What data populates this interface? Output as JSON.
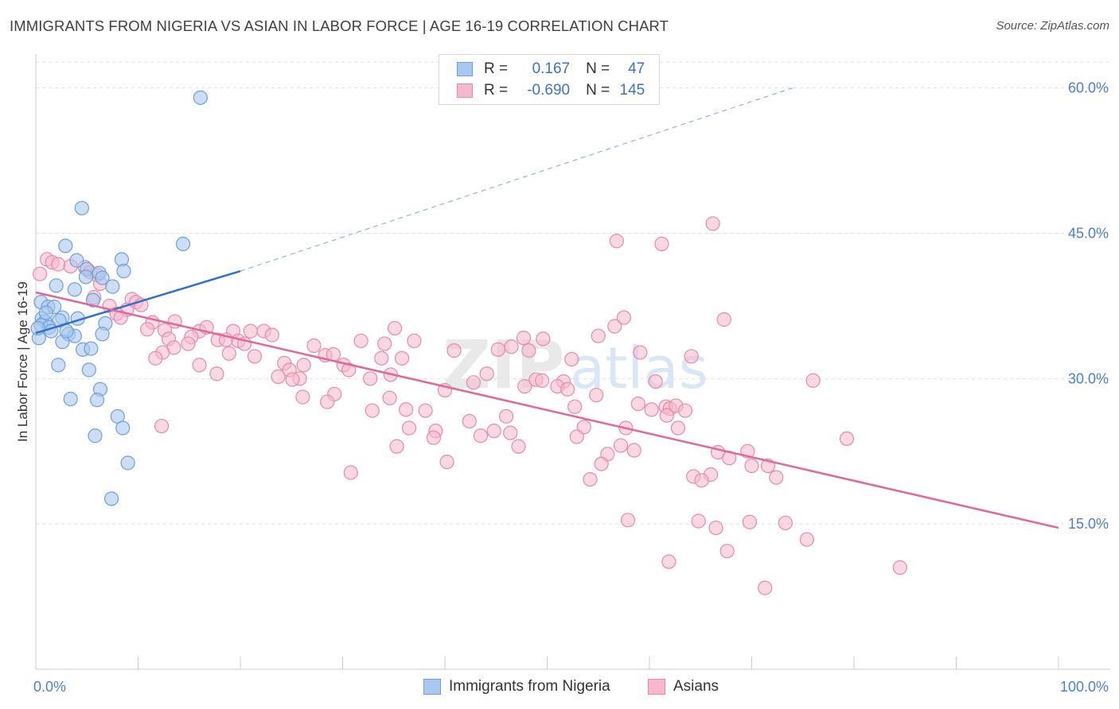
{
  "title": "IMMIGRANTS FROM NIGERIA VS ASIAN IN LABOR FORCE | AGE 16-19 CORRELATION CHART",
  "source": "Source: ZipAtlas.com",
  "watermark": "ZIPatlas",
  "colors": {
    "blue_fill": "#a9c8ef",
    "blue_stroke": "#6f9fdc",
    "blue_line": "#2f6fce",
    "pink_fill": "#f5b8cc",
    "pink_stroke": "#e68aa8",
    "pink_line": "#e06796",
    "grid": "#dddddd",
    "tick_text": "#4a7fd0"
  },
  "legend": {
    "rows": [
      {
        "r_label": "R =",
        "r_value": "0.167",
        "n_label": "N =",
        "n_value": "47"
      },
      {
        "r_label": "R =",
        "r_value": "-0.690",
        "n_label": "N =",
        "n_value": "145"
      }
    ]
  },
  "bottom_legend": {
    "items": [
      "Immigrants from Nigeria",
      "Asians"
    ]
  },
  "chart_data": {
    "type": "scatter",
    "title": "IMMIGRANTS FROM NIGERIA VS ASIAN IN LABOR FORCE | AGE 16-19 CORRELATION CHART",
    "xlabel": "",
    "ylabel": "In Labor Force | Age 16-19",
    "xlim": [
      0,
      100
    ],
    "ylim": [
      0,
      63.5
    ],
    "x_tick_labels": [
      {
        "value": 0,
        "label": "0.0%"
      },
      {
        "value": 100,
        "label": "100.0%"
      }
    ],
    "y_ticks": [
      {
        "value": 15,
        "label": "15.0%"
      },
      {
        "value": 30,
        "label": "30.0%"
      },
      {
        "value": 45,
        "label": "45.0%"
      },
      {
        "value": 60,
        "label": "60.0%"
      }
    ],
    "x_minor_ticks": [
      0,
      10,
      20,
      30,
      40,
      50,
      60,
      70,
      80,
      90,
      100
    ],
    "series": [
      {
        "name": "Immigrants from Nigeria",
        "R": 0.167,
        "N": 47,
        "trend": {
          "x0": 0,
          "y0": 34.7,
          "x1": 20,
          "y1": 41.1,
          "dash_to_x": 74,
          "dash_to_y": 60.0
        },
        "points": [
          [
            16.1,
            59.0
          ],
          [
            4.5,
            47.6
          ],
          [
            14.4,
            43.9
          ],
          [
            2.9,
            43.7
          ],
          [
            4.0,
            42.2
          ],
          [
            8.4,
            42.3
          ],
          [
            5.0,
            41.3
          ],
          [
            6.2,
            40.9
          ],
          [
            8.6,
            41.1
          ],
          [
            4.9,
            40.5
          ],
          [
            6.5,
            40.4
          ],
          [
            2.0,
            39.6
          ],
          [
            3.8,
            39.2
          ],
          [
            7.5,
            39.5
          ],
          [
            5.6,
            38.1
          ],
          [
            0.5,
            37.9
          ],
          [
            1.2,
            37.4
          ],
          [
            1.8,
            37.4
          ],
          [
            0.6,
            36.2
          ],
          [
            2.6,
            36.3
          ],
          [
            4.1,
            36.2
          ],
          [
            2.3,
            36.0
          ],
          [
            0.9,
            35.9
          ],
          [
            0.5,
            35.5
          ],
          [
            1.3,
            35.3
          ],
          [
            6.8,
            35.7
          ],
          [
            1.5,
            34.9
          ],
          [
            3.2,
            34.6
          ],
          [
            3.8,
            34.4
          ],
          [
            6.5,
            34.6
          ],
          [
            2.6,
            33.8
          ],
          [
            0.3,
            34.2
          ],
          [
            4.6,
            33.0
          ],
          [
            5.4,
            33.1
          ],
          [
            2.2,
            31.4
          ],
          [
            5.2,
            30.9
          ],
          [
            6.3,
            28.9
          ],
          [
            3.4,
            27.9
          ],
          [
            6.0,
            27.8
          ],
          [
            8.0,
            26.1
          ],
          [
            8.5,
            24.9
          ],
          [
            5.8,
            24.1
          ],
          [
            9.0,
            21.3
          ],
          [
            7.4,
            17.6
          ],
          [
            0.2,
            35.2
          ],
          [
            1.0,
            36.8
          ],
          [
            3.0,
            34.9
          ]
        ]
      },
      {
        "name": "Asians",
        "R": -0.69,
        "N": 145,
        "trend": {
          "x0": 0,
          "y0": 38.9,
          "x1": 100,
          "y1": 14.6
        },
        "points": [
          [
            0.4,
            40.8
          ],
          [
            1.1,
            42.3
          ],
          [
            1.6,
            42.0
          ],
          [
            2.2,
            41.8
          ],
          [
            3.4,
            41.6
          ],
          [
            4.8,
            41.5
          ],
          [
            5.3,
            41.0
          ],
          [
            6.0,
            40.7
          ],
          [
            6.3,
            39.8
          ],
          [
            5.7,
            38.4
          ],
          [
            9.4,
            38.2
          ],
          [
            9.8,
            37.9
          ],
          [
            7.2,
            37.5
          ],
          [
            8.9,
            37.1
          ],
          [
            10.3,
            37.6
          ],
          [
            7.9,
            36.7
          ],
          [
            8.3,
            36.3
          ],
          [
            13.6,
            35.9
          ],
          [
            11.4,
            35.8
          ],
          [
            10.9,
            35.1
          ],
          [
            12.6,
            35.0
          ],
          [
            16.0,
            34.9
          ],
          [
            16.7,
            35.3
          ],
          [
            19.3,
            34.9
          ],
          [
            21.0,
            34.9
          ],
          [
            22.3,
            34.9
          ],
          [
            23.1,
            34.5
          ],
          [
            15.2,
            34.3
          ],
          [
            13.0,
            34.1
          ],
          [
            17.8,
            34.0
          ],
          [
            18.6,
            34.0
          ],
          [
            19.8,
            33.9
          ],
          [
            20.4,
            33.6
          ],
          [
            14.9,
            33.6
          ],
          [
            13.5,
            33.2
          ],
          [
            12.4,
            32.7
          ],
          [
            21.4,
            32.3
          ],
          [
            11.7,
            32.1
          ],
          [
            24.3,
            31.6
          ],
          [
            26.2,
            31.4
          ],
          [
            24.8,
            30.9
          ],
          [
            16.0,
            31.4
          ],
          [
            17.7,
            30.5
          ],
          [
            23.7,
            30.2
          ],
          [
            25.8,
            30.0
          ],
          [
            25.1,
            29.9
          ],
          [
            28.3,
            32.4
          ],
          [
            29.1,
            32.5
          ],
          [
            27.2,
            33.4
          ],
          [
            30.1,
            31.4
          ],
          [
            31.8,
            33.9
          ],
          [
            35.1,
            35.2
          ],
          [
            33.8,
            32.1
          ],
          [
            37.0,
            33.9
          ],
          [
            35.8,
            32.1
          ],
          [
            34.7,
            30.4
          ],
          [
            32.7,
            30.0
          ],
          [
            30.6,
            30.9
          ],
          [
            29.2,
            28.4
          ],
          [
            28.5,
            27.6
          ],
          [
            26.1,
            28.1
          ],
          [
            32.9,
            26.7
          ],
          [
            34.6,
            28.0
          ],
          [
            36.2,
            26.8
          ],
          [
            36.5,
            24.9
          ],
          [
            39.1,
            24.6
          ],
          [
            38.1,
            26.7
          ],
          [
            35.3,
            23.0
          ],
          [
            38.9,
            23.9
          ],
          [
            40.0,
            28.8
          ],
          [
            40.9,
            32.9
          ],
          [
            42.4,
            25.6
          ],
          [
            42.8,
            29.6
          ],
          [
            44.1,
            30.5
          ],
          [
            45.2,
            33.0
          ],
          [
            43.5,
            24.1
          ],
          [
            44.8,
            24.6
          ],
          [
            46.4,
            24.4
          ],
          [
            47.2,
            23.0
          ],
          [
            46.0,
            26.1
          ],
          [
            47.8,
            29.2
          ],
          [
            48.9,
            29.9
          ],
          [
            49.5,
            29.8
          ],
          [
            51.6,
            29.7
          ],
          [
            47.7,
            34.2
          ],
          [
            46.5,
            33.3
          ],
          [
            48.2,
            32.9
          ],
          [
            49.6,
            34.1
          ],
          [
            51.0,
            29.2
          ],
          [
            52.7,
            27.1
          ],
          [
            53.6,
            25.0
          ],
          [
            54.8,
            28.3
          ],
          [
            52.9,
            24.0
          ],
          [
            52.4,
            32.0
          ],
          [
            52.0,
            28.9
          ],
          [
            55.9,
            22.2
          ],
          [
            57.7,
            24.9
          ],
          [
            58.5,
            22.6
          ],
          [
            57.2,
            23.1
          ],
          [
            58.9,
            27.4
          ],
          [
            60.6,
            29.7
          ],
          [
            61.6,
            27.1
          ],
          [
            62.0,
            26.9
          ],
          [
            62.6,
            27.2
          ],
          [
            60.2,
            26.8
          ],
          [
            61.7,
            26.2
          ],
          [
            62.8,
            24.9
          ],
          [
            63.5,
            26.7
          ],
          [
            64.1,
            32.3
          ],
          [
            55.0,
            34.4
          ],
          [
            56.6,
            35.4
          ],
          [
            57.5,
            36.3
          ],
          [
            59.1,
            32.7
          ],
          [
            61.2,
            43.9
          ],
          [
            56.8,
            44.2
          ],
          [
            66.2,
            46.0
          ],
          [
            67.3,
            36.1
          ],
          [
            66.7,
            22.4
          ],
          [
            67.8,
            21.8
          ],
          [
            66.0,
            20.1
          ],
          [
            64.3,
            19.9
          ],
          [
            65.1,
            19.5
          ],
          [
            70.0,
            21.0
          ],
          [
            69.6,
            22.5
          ],
          [
            71.6,
            21.0
          ],
          [
            72.4,
            19.8
          ],
          [
            76.0,
            29.8
          ],
          [
            79.3,
            23.8
          ],
          [
            55.3,
            21.2
          ],
          [
            54.2,
            19.6
          ],
          [
            57.9,
            15.4
          ],
          [
            64.8,
            15.3
          ],
          [
            66.5,
            14.6
          ],
          [
            69.8,
            15.2
          ],
          [
            73.3,
            15.1
          ],
          [
            75.4,
            13.4
          ],
          [
            61.9,
            11.1
          ],
          [
            67.6,
            12.2
          ],
          [
            71.3,
            8.4
          ],
          [
            84.5,
            10.5
          ],
          [
            40.2,
            21.4
          ],
          [
            34.1,
            33.6
          ],
          [
            18.9,
            32.6
          ],
          [
            12.3,
            25.1
          ],
          [
            30.8,
            20.3
          ]
        ]
      }
    ]
  }
}
